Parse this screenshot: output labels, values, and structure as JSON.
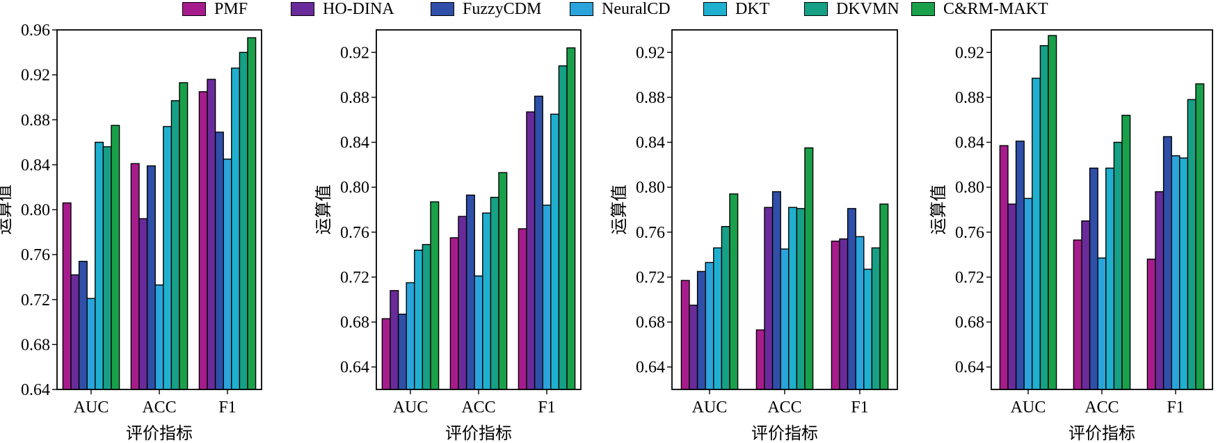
{
  "colors": {
    "PMF": "#a71c8c",
    "HO-DINA": "#6a2b9a",
    "FuzzyCDM": "#2f4fa8",
    "NeuralCD": "#2aa4db",
    "DKT": "#1fb0cf",
    "DKVMN": "#16a085",
    "C&RM-MAKT": "#1aa04a"
  },
  "legend": [
    "PMF",
    "HO-DINA",
    "FuzzyCDM",
    "NeuralCD",
    "DKT",
    "DKVMN",
    "C&RM-MAKT"
  ],
  "chart_data": [
    {
      "type": "bar",
      "categories": [
        "AUC",
        "ACC",
        "F1"
      ],
      "xlabel": "评价指标",
      "ylabel": "运算值",
      "ylim": [
        0.64,
        0.96
      ],
      "yticks": [
        "0.64",
        "0.68",
        "0.72",
        "0.76",
        "0.80",
        "0.84",
        "0.88",
        "0.92",
        "0.96"
      ],
      "series": [
        {
          "name": "PMF",
          "values": [
            0.806,
            0.841,
            0.905
          ]
        },
        {
          "name": "HO-DINA",
          "values": [
            0.742,
            0.792,
            0.916
          ]
        },
        {
          "name": "FuzzyCDM",
          "values": [
            0.754,
            0.839,
            0.869
          ]
        },
        {
          "name": "NeuralCD",
          "values": [
            0.721,
            0.733,
            0.845
          ]
        },
        {
          "name": "DKT",
          "values": [
            0.86,
            0.874,
            0.926
          ]
        },
        {
          "name": "DKVMN",
          "values": [
            0.856,
            0.897,
            0.94
          ]
        },
        {
          "name": "C&RM-MAKT",
          "values": [
            0.875,
            0.913,
            0.953
          ]
        }
      ]
    },
    {
      "type": "bar",
      "categories": [
        "AUC",
        "ACC",
        "F1"
      ],
      "xlabel": "评价指标",
      "ylabel": "运算值",
      "ylim": [
        0.62,
        0.94
      ],
      "yticks": [
        "0.64",
        "0.68",
        "0.72",
        "0.76",
        "0.80",
        "0.84",
        "0.88",
        "0.92"
      ],
      "series": [
        {
          "name": "PMF",
          "values": [
            0.683,
            0.755,
            0.763
          ]
        },
        {
          "name": "HO-DINA",
          "values": [
            0.708,
            0.774,
            0.867
          ]
        },
        {
          "name": "FuzzyCDM",
          "values": [
            0.687,
            0.793,
            0.881
          ]
        },
        {
          "name": "NeuralCD",
          "values": [
            0.715,
            0.721,
            0.784
          ]
        },
        {
          "name": "DKT",
          "values": [
            0.744,
            0.777,
            0.865
          ]
        },
        {
          "name": "DKVMN",
          "values": [
            0.749,
            0.791,
            0.908
          ]
        },
        {
          "name": "C&RM-MAKT",
          "values": [
            0.787,
            0.813,
            0.924
          ]
        }
      ]
    },
    {
      "type": "bar",
      "categories": [
        "AUC",
        "ACC",
        "F1"
      ],
      "xlabel": "评价指标",
      "ylabel": "运算值",
      "ylim": [
        0.62,
        0.94
      ],
      "yticks": [
        "0.64",
        "0.68",
        "0.72",
        "0.76",
        "0.80",
        "0.84",
        "0.88",
        "0.92"
      ],
      "series": [
        {
          "name": "PMF",
          "values": [
            0.717,
            0.673,
            0.752
          ]
        },
        {
          "name": "HO-DINA",
          "values": [
            0.695,
            0.782,
            0.754
          ]
        },
        {
          "name": "FuzzyCDM",
          "values": [
            0.725,
            0.796,
            0.781
          ]
        },
        {
          "name": "NeuralCD",
          "values": [
            0.733,
            0.745,
            0.756
          ]
        },
        {
          "name": "DKT",
          "values": [
            0.746,
            0.782,
            0.727
          ]
        },
        {
          "name": "DKVMN",
          "values": [
            0.765,
            0.781,
            0.746
          ]
        },
        {
          "name": "C&RM-MAKT",
          "values": [
            0.794,
            0.835,
            0.785
          ]
        }
      ]
    },
    {
      "type": "bar",
      "categories": [
        "AUC",
        "ACC",
        "F1"
      ],
      "xlabel": "评价指标",
      "ylabel": "运算值",
      "ylim": [
        0.62,
        0.94
      ],
      "yticks": [
        "0.64",
        "0.68",
        "0.72",
        "0.76",
        "0.80",
        "0.84",
        "0.88",
        "0.92"
      ],
      "series": [
        {
          "name": "PMF",
          "values": [
            0.837,
            0.753,
            0.736
          ]
        },
        {
          "name": "HO-DINA",
          "values": [
            0.785,
            0.77,
            0.796
          ]
        },
        {
          "name": "FuzzyCDM",
          "values": [
            0.841,
            0.817,
            0.845
          ]
        },
        {
          "name": "NeuralCD",
          "values": [
            0.79,
            0.737,
            0.828
          ]
        },
        {
          "name": "DKT",
          "values": [
            0.897,
            0.817,
            0.826
          ]
        },
        {
          "name": "DKVMN",
          "values": [
            0.926,
            0.84,
            0.878
          ]
        },
        {
          "name": "C&RM-MAKT",
          "values": [
            0.935,
            0.864,
            0.892
          ]
        }
      ]
    }
  ]
}
